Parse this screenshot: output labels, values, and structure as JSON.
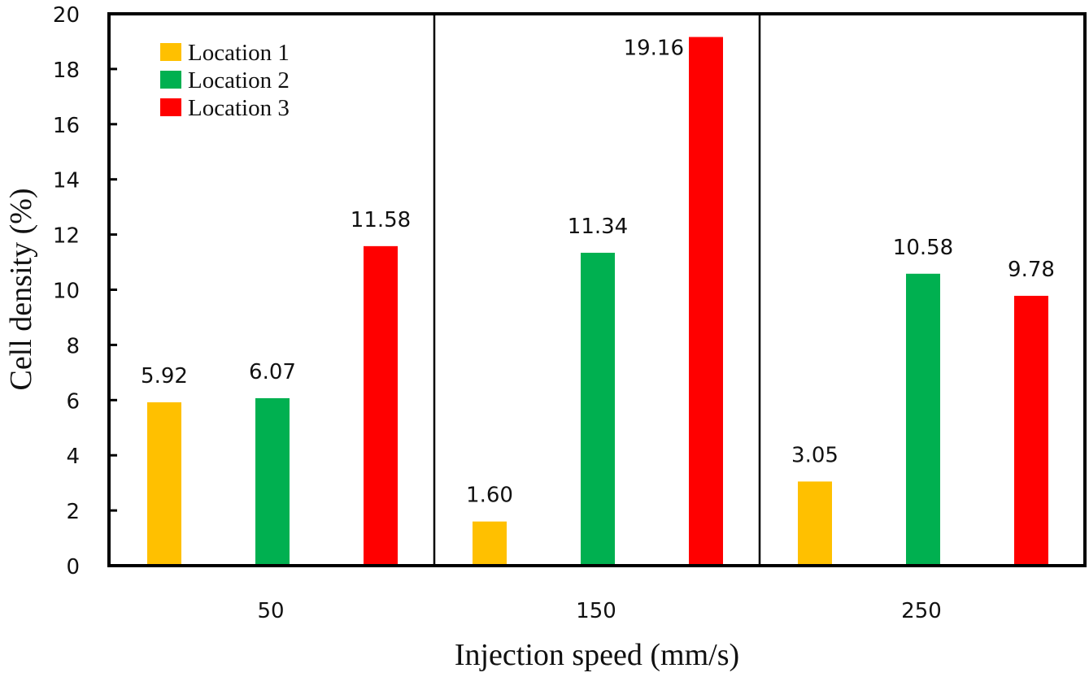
{
  "chart_data": {
    "type": "bar",
    "title": "",
    "xlabel": "Injection speed (mm/s)",
    "ylabel": "Cell density (%)",
    "ylim": [
      0,
      20
    ],
    "yticks": [
      0,
      2,
      4,
      6,
      8,
      10,
      12,
      14,
      16,
      18,
      20
    ],
    "grid": false,
    "categories": [
      "50",
      "150",
      "250"
    ],
    "series": [
      {
        "name": "Location 1",
        "color": "#FFC000",
        "values": [
          5.92,
          1.6,
          3.05
        ],
        "labels": [
          "5.92",
          "1.60",
          "3.05"
        ]
      },
      {
        "name": "Location 2",
        "color": "#00B050",
        "values": [
          6.07,
          11.34,
          10.58
        ],
        "labels": [
          "6.07",
          "11.34",
          "10.58"
        ]
      },
      {
        "name": "Location 3",
        "color": "#FF0000",
        "values": [
          11.58,
          19.16,
          9.78
        ],
        "labels": [
          "11.58",
          "19.16",
          "9.78"
        ]
      }
    ],
    "legend": {
      "position": "top-left"
    },
    "group_dividers": true
  }
}
